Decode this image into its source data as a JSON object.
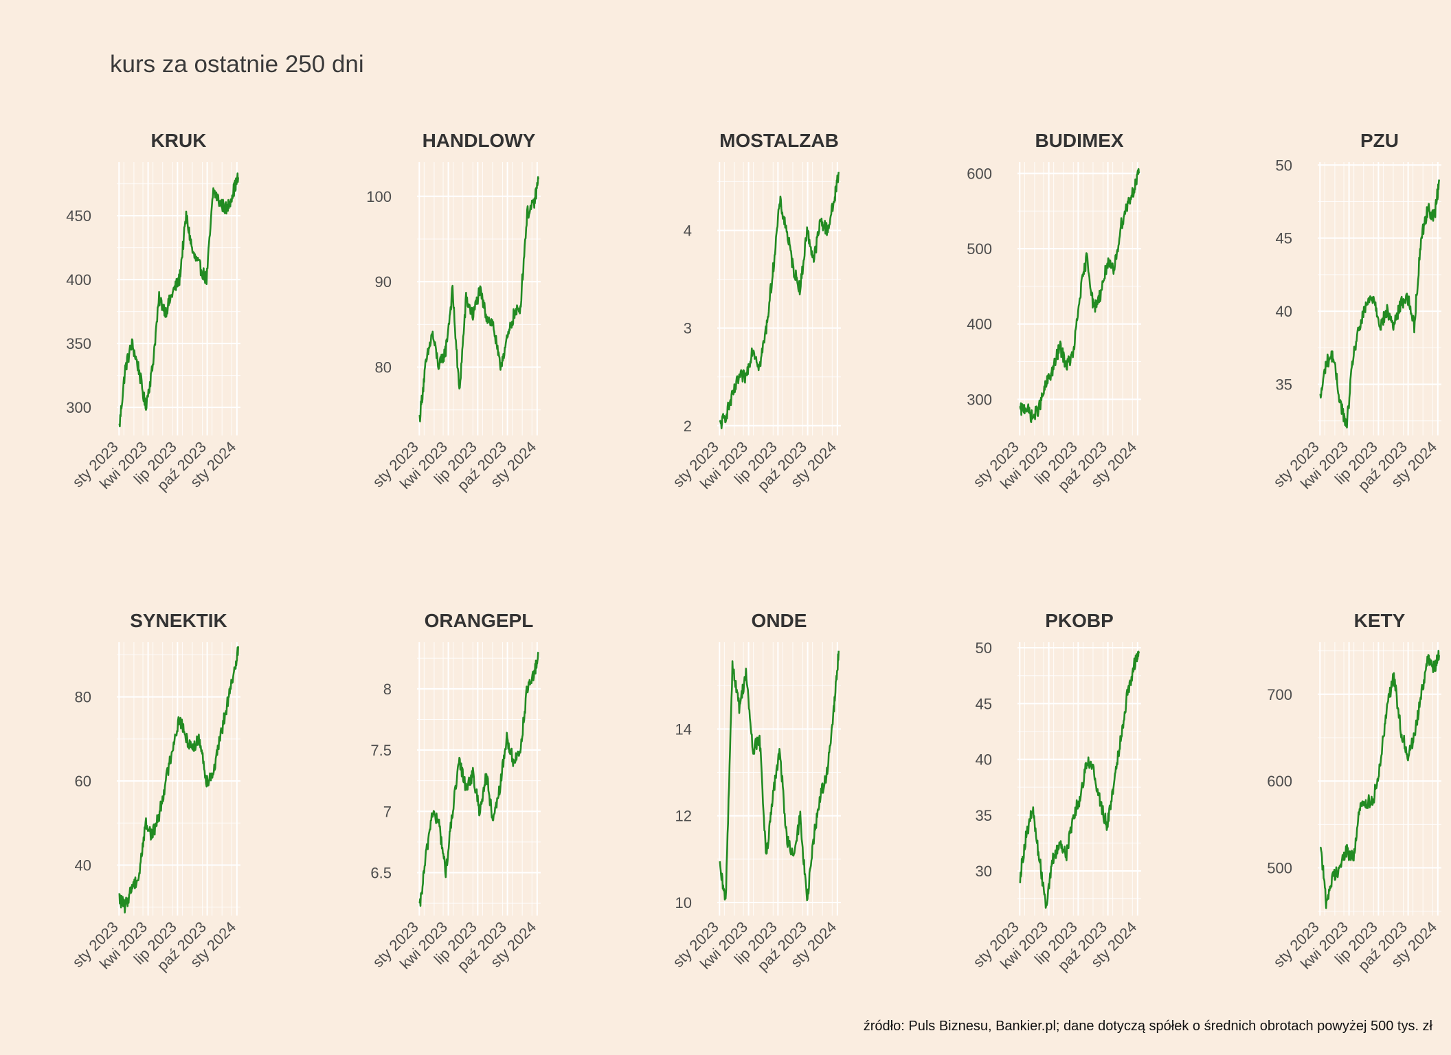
{
  "title": "kurs za ostatnie 250 dni",
  "source": "źródło: Puls Biznesu, Bankier.pl; dane dotyczą spółek o średnich obrotach powyżej 500 tys. zł",
  "colors": {
    "background": "#faede0",
    "line": "#228b22",
    "grid": "#ffffff"
  },
  "x_tick_labels": [
    "sty 2023",
    "kwi 2023",
    "lip 2023",
    "paź 2023",
    "sty 2024"
  ],
  "chart_data": [
    {
      "type": "line",
      "title": "KRUK",
      "xlabel": "",
      "ylabel": "",
      "x": [
        "2023-01-02",
        "2023-01-20",
        "2023-02-10",
        "2023-03-03",
        "2023-03-24",
        "2023-04-14",
        "2023-05-05",
        "2023-05-26",
        "2023-06-16",
        "2023-07-07",
        "2023-07-28",
        "2023-08-18",
        "2023-09-08",
        "2023-09-29",
        "2023-10-20",
        "2023-11-10",
        "2023-12-01",
        "2023-12-22",
        "2024-01-05"
      ],
      "values": [
        285,
        330,
        350,
        330,
        300,
        330,
        385,
        375,
        390,
        400,
        450,
        420,
        410,
        400,
        470,
        460,
        455,
        470,
        480
      ],
      "yticks": [
        300,
        350,
        400,
        450
      ],
      "ylim": [
        278,
        492
      ]
    },
    {
      "type": "line",
      "title": "HANDLOWY",
      "xlabel": "",
      "ylabel": "",
      "x": [
        "2023-01-02",
        "2023-01-20",
        "2023-02-10",
        "2023-03-03",
        "2023-03-24",
        "2023-04-14",
        "2023-05-05",
        "2023-05-26",
        "2023-06-16",
        "2023-07-07",
        "2023-07-28",
        "2023-08-18",
        "2023-09-08",
        "2023-09-29",
        "2023-10-20",
        "2023-11-10",
        "2023-12-01",
        "2023-12-22",
        "2024-01-05"
      ],
      "values": [
        74,
        80,
        84,
        80,
        82,
        89,
        77,
        88,
        86,
        89,
        86,
        85,
        80,
        83,
        86,
        87,
        98,
        99,
        102
      ],
      "yticks": [
        80,
        90,
        100
      ],
      "ylim": [
        72,
        104
      ]
    },
    {
      "type": "line",
      "title": "MOSTALZAB",
      "xlabel": "",
      "ylabel": "",
      "x": [
        "2023-01-02",
        "2023-01-20",
        "2023-02-10",
        "2023-03-03",
        "2023-03-24",
        "2023-04-14",
        "2023-05-05",
        "2023-05-26",
        "2023-06-16",
        "2023-07-07",
        "2023-07-28",
        "2023-08-18",
        "2023-09-08",
        "2023-09-29",
        "2023-10-20",
        "2023-11-10",
        "2023-12-01",
        "2023-12-22",
        "2024-01-05"
      ],
      "values": [
        2.0,
        2.1,
        2.3,
        2.5,
        2.5,
        2.8,
        2.6,
        3.0,
        3.6,
        4.3,
        4.0,
        3.6,
        3.4,
        4.0,
        3.7,
        4.1,
        4.0,
        4.3,
        4.6
      ],
      "yticks": [
        2,
        3,
        4
      ],
      "ylim": [
        1.9,
        4.7
      ]
    },
    {
      "type": "line",
      "title": "BUDIMEX",
      "xlabel": "",
      "ylabel": "",
      "x": [
        "2023-01-02",
        "2023-01-20",
        "2023-02-10",
        "2023-03-03",
        "2023-03-24",
        "2023-04-14",
        "2023-05-05",
        "2023-05-26",
        "2023-06-16",
        "2023-07-07",
        "2023-07-28",
        "2023-08-18",
        "2023-09-08",
        "2023-09-29",
        "2023-10-20",
        "2023-11-10",
        "2023-12-01",
        "2023-12-22",
        "2024-01-05"
      ],
      "values": [
        285,
        290,
        275,
        290,
        320,
        340,
        370,
        345,
        360,
        440,
        490,
        420,
        440,
        480,
        470,
        530,
        560,
        580,
        600
      ],
      "yticks": [
        300,
        400,
        500,
        600
      ],
      "ylim": [
        252,
        615
      ]
    },
    {
      "type": "line",
      "title": "PZU",
      "xlabel": "",
      "ylabel": "",
      "x": [
        "2023-01-02",
        "2023-01-20",
        "2023-02-10",
        "2023-03-03",
        "2023-03-24",
        "2023-04-14",
        "2023-05-05",
        "2023-05-26",
        "2023-06-16",
        "2023-07-07",
        "2023-07-28",
        "2023-08-18",
        "2023-09-08",
        "2023-09-29",
        "2023-10-20",
        "2023-11-10",
        "2023-12-01",
        "2023-12-22",
        "2024-01-05"
      ],
      "values": [
        34,
        36.5,
        37,
        34,
        32,
        37,
        39,
        40.5,
        41,
        39,
        40,
        39,
        40.5,
        41,
        39,
        45,
        47,
        46.5,
        49
      ],
      "yticks": [
        35,
        40,
        45,
        50
      ],
      "ylim": [
        31.5,
        50.2
      ]
    },
    {
      "type": "line",
      "title": "SYNEKTIK",
      "xlabel": "",
      "ylabel": "",
      "x": [
        "2023-01-02",
        "2023-01-20",
        "2023-02-10",
        "2023-03-03",
        "2023-03-24",
        "2023-04-14",
        "2023-05-05",
        "2023-05-26",
        "2023-06-16",
        "2023-07-07",
        "2023-07-28",
        "2023-08-18",
        "2023-09-08",
        "2023-09-29",
        "2023-10-20",
        "2023-11-10",
        "2023-12-01",
        "2023-12-22",
        "2024-01-05"
      ],
      "values": [
        32,
        30,
        35,
        37,
        50,
        47,
        52,
        60,
        68,
        75,
        70,
        68,
        70,
        60,
        62,
        70,
        78,
        85,
        92
      ],
      "yticks": [
        40,
        60,
        80
      ],
      "ylim": [
        28,
        93
      ]
    },
    {
      "type": "line",
      "title": "ORANGEPL",
      "xlabel": "",
      "ylabel": "",
      "x": [
        "2023-01-02",
        "2023-01-20",
        "2023-02-10",
        "2023-03-03",
        "2023-03-24",
        "2023-04-14",
        "2023-05-05",
        "2023-05-26",
        "2023-06-16",
        "2023-07-07",
        "2023-07-28",
        "2023-08-18",
        "2023-09-08",
        "2023-09-29",
        "2023-10-20",
        "2023-11-10",
        "2023-12-01",
        "2023-12-22",
        "2024-01-05"
      ],
      "values": [
        6.2,
        6.6,
        7.0,
        6.9,
        6.5,
        7.0,
        7.4,
        7.2,
        7.3,
        7.0,
        7.3,
        6.9,
        7.2,
        7.6,
        7.4,
        7.5,
        8.0,
        8.1,
        8.3
      ],
      "yticks": [
        6.5,
        7.0,
        7.5,
        8.0
      ],
      "ylim": [
        6.15,
        8.38
      ]
    },
    {
      "type": "line",
      "title": "ONDE",
      "xlabel": "",
      "ylabel": "",
      "x": [
        "2023-01-02",
        "2023-01-20",
        "2023-02-10",
        "2023-03-03",
        "2023-03-24",
        "2023-04-14",
        "2023-05-05",
        "2023-05-26",
        "2023-06-16",
        "2023-07-07",
        "2023-07-28",
        "2023-08-18",
        "2023-09-08",
        "2023-09-29",
        "2023-10-20",
        "2023-11-10",
        "2023-12-01",
        "2023-12-22",
        "2024-01-05"
      ],
      "values": [
        10.8,
        10.0,
        15.5,
        14.5,
        15.3,
        13.5,
        13.8,
        11.0,
        12.5,
        13.5,
        11.5,
        11.0,
        12.0,
        10.0,
        11.5,
        12.5,
        13.0,
        14.5,
        15.8
      ],
      "yticks": [
        10,
        12,
        14
      ],
      "ylim": [
        9.7,
        16.0
      ]
    },
    {
      "type": "line",
      "title": "PKOBP",
      "xlabel": "",
      "ylabel": "",
      "x": [
        "2023-01-02",
        "2023-01-20",
        "2023-02-10",
        "2023-03-03",
        "2023-03-24",
        "2023-04-14",
        "2023-05-05",
        "2023-05-26",
        "2023-06-16",
        "2023-07-07",
        "2023-07-28",
        "2023-08-18",
        "2023-09-08",
        "2023-09-29",
        "2023-10-20",
        "2023-11-10",
        "2023-12-01",
        "2023-12-22",
        "2024-01-05"
      ],
      "values": [
        29.5,
        33,
        35.5,
        31,
        27,
        31,
        32.5,
        31.5,
        35,
        36.5,
        40,
        39,
        36,
        34,
        38,
        42,
        46,
        48.5,
        49.5
      ],
      "yticks": [
        30,
        35,
        40,
        45,
        50
      ],
      "ylim": [
        26,
        50.5
      ]
    },
    {
      "type": "line",
      "title": "KETY",
      "xlabel": "",
      "ylabel": "",
      "x": [
        "2023-01-02",
        "2023-01-20",
        "2023-02-10",
        "2023-03-03",
        "2023-03-24",
        "2023-04-14",
        "2023-05-05",
        "2023-05-26",
        "2023-06-16",
        "2023-07-07",
        "2023-07-28",
        "2023-08-18",
        "2023-09-08",
        "2023-09-29",
        "2023-10-20",
        "2023-11-10",
        "2023-12-01",
        "2023-12-22",
        "2024-01-05"
      ],
      "values": [
        530,
        460,
        490,
        500,
        520,
        510,
        570,
        575,
        580,
        620,
        690,
        720,
        660,
        630,
        650,
        700,
        740,
        730,
        745
      ],
      "yticks": [
        500,
        600,
        700
      ],
      "ylim": [
        445,
        760
      ]
    }
  ]
}
